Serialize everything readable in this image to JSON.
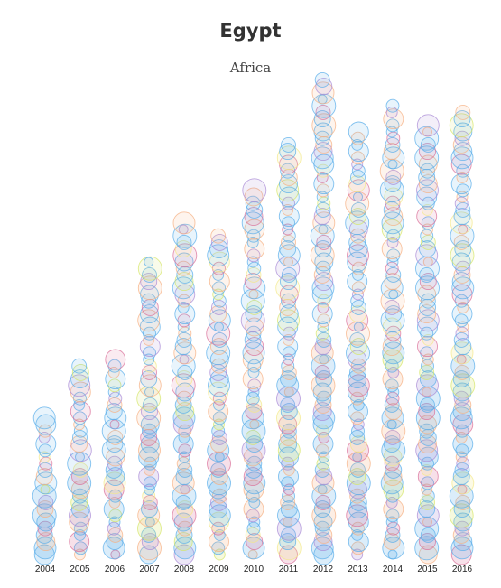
{
  "title": "Egypt",
  "subtitle": "Africa",
  "colors": {
    "blue": "#5aaeea",
    "peach": "#f6b083",
    "pink": "#d9709a",
    "purple": "#a98bd6",
    "lime": "#d6e56a",
    "yellow": "#f3e88a"
  },
  "chart_data": {
    "type": "scatter",
    "title": "Egypt",
    "subtitle": "Africa",
    "xlabel": "",
    "ylabel": "",
    "categories": [
      "2004",
      "2005",
      "2006",
      "2007",
      "2008",
      "2009",
      "2010",
      "2011",
      "2012",
      "2013",
      "2014",
      "2015",
      "2016"
    ],
    "stack_counts": [
      22,
      30,
      31,
      46,
      52,
      50,
      57,
      64,
      74,
      66,
      70,
      67,
      69
    ],
    "bubble_sizes": [
      11,
      9,
      7,
      12,
      8,
      6,
      10,
      13,
      7,
      9,
      5,
      11,
      8,
      12,
      6,
      10,
      9,
      7,
      13,
      8
    ],
    "color_cycle": [
      "blue",
      "blue",
      "peach",
      "blue",
      "pink",
      "blue",
      "blue",
      "peach",
      "purple",
      "blue",
      "lime",
      "blue",
      "peach",
      "blue",
      "pink",
      "yellow",
      "blue",
      "blue",
      "purple",
      "peach"
    ]
  }
}
